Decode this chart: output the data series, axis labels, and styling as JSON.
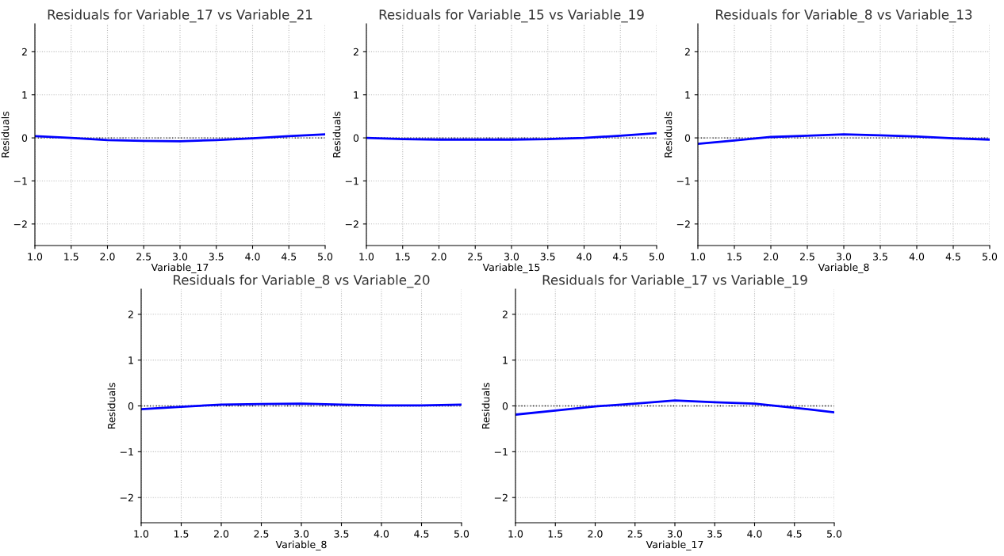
{
  "chart_data": [
    {
      "type": "line",
      "title": "Residuals for Variable_17 vs Variable_21",
      "xlabel": "Variable_17",
      "ylabel": "Residuals",
      "x": [
        1.0,
        1.5,
        2.0,
        2.5,
        3.0,
        3.5,
        4.0,
        4.5,
        5.0
      ],
      "series": [
        {
          "color": "#0000ff",
          "values": [
            0.04,
            0.0,
            -0.05,
            -0.07,
            -0.08,
            -0.05,
            -0.01,
            0.04,
            0.08
          ]
        }
      ],
      "xlim": [
        1.0,
        5.0
      ],
      "ylim": [
        -2.5,
        2.65
      ],
      "xticks": [
        {
          "value": 1.0,
          "label": "1.0"
        },
        {
          "value": 1.5,
          "label": "1.5"
        },
        {
          "value": 2.0,
          "label": "2.0"
        },
        {
          "value": 2.5,
          "label": "2.5"
        },
        {
          "value": 3.0,
          "label": "3.0"
        },
        {
          "value": 3.5,
          "label": "3.5"
        },
        {
          "value": 4.0,
          "label": "4.0"
        },
        {
          "value": 4.5,
          "label": "4.5"
        },
        {
          "value": 5.0,
          "label": "5.0"
        }
      ],
      "yticks": [
        -2,
        -1,
        0,
        1,
        2
      ],
      "ref_lines": [
        {
          "axis": "y",
          "value": 0,
          "color": "#000000",
          "line_style": "dotted"
        }
      ],
      "grid": true,
      "marker": "none",
      "line_style": "solid"
    },
    {
      "type": "line",
      "title": "Residuals for Variable_15 vs Variable_19",
      "xlabel": "Variable_15",
      "ylabel": "Residuals",
      "x": [
        1.0,
        1.5,
        2.0,
        2.5,
        3.0,
        3.5,
        4.0,
        4.5,
        5.0
      ],
      "series": [
        {
          "color": "#0000ff",
          "values": [
            0.0,
            -0.03,
            -0.04,
            -0.04,
            -0.04,
            -0.03,
            0.0,
            0.05,
            0.11
          ]
        }
      ],
      "xlim": [
        1.0,
        5.0
      ],
      "ylim": [
        -2.5,
        2.65
      ],
      "xticks": [
        {
          "value": 1.0,
          "label": "1.0"
        },
        {
          "value": 1.5,
          "label": "1.5"
        },
        {
          "value": 2.0,
          "label": "2.0"
        },
        {
          "value": 2.5,
          "label": "2.5"
        },
        {
          "value": 3.0,
          "label": "3.0"
        },
        {
          "value": 3.5,
          "label": "3.5"
        },
        {
          "value": 4.0,
          "label": "4.0"
        },
        {
          "value": 4.5,
          "label": "4.5"
        },
        {
          "value": 5.0,
          "label": "5.0"
        }
      ],
      "yticks": [
        -2,
        -1,
        0,
        1,
        2
      ],
      "ref_lines": [
        {
          "axis": "y",
          "value": 0,
          "color": "#000000",
          "line_style": "dotted"
        }
      ],
      "grid": true,
      "marker": "none",
      "line_style": "solid"
    },
    {
      "type": "line",
      "title": "Residuals for Variable_8 vs Variable_13",
      "xlabel": "Variable_8",
      "ylabel": "Residuals",
      "x": [
        1.0,
        1.5,
        2.0,
        2.5,
        3.0,
        3.5,
        4.0,
        4.5,
        5.0
      ],
      "series": [
        {
          "color": "#0000ff",
          "values": [
            -0.14,
            -0.06,
            0.02,
            0.05,
            0.08,
            0.06,
            0.03,
            -0.01,
            -0.04
          ]
        }
      ],
      "xlim": [
        1.0,
        5.0
      ],
      "ylim": [
        -2.5,
        2.65
      ],
      "xticks": [
        {
          "value": 1.0,
          "label": "1.0"
        },
        {
          "value": 1.5,
          "label": "1.5"
        },
        {
          "value": 2.0,
          "label": "2.0"
        },
        {
          "value": 2.5,
          "label": "2.5"
        },
        {
          "value": 3.0,
          "label": "3.0"
        },
        {
          "value": 3.5,
          "label": "3.5"
        },
        {
          "value": 4.0,
          "label": "4.0"
        },
        {
          "value": 4.5,
          "label": "4.5"
        },
        {
          "value": 5.0,
          "label": "5.0"
        }
      ],
      "yticks": [
        -2,
        -1,
        0,
        1,
        2
      ],
      "ref_lines": [
        {
          "axis": "y",
          "value": 0,
          "color": "#000000",
          "line_style": "dotted"
        }
      ],
      "grid": true,
      "marker": "none",
      "line_style": "solid"
    },
    {
      "type": "line",
      "title": "Residuals for Variable_8 vs Variable_20",
      "xlabel": "Variable_8",
      "ylabel": "Residuals",
      "x": [
        1.0,
        1.5,
        2.0,
        2.5,
        3.0,
        3.5,
        4.0,
        4.5,
        5.0
      ],
      "series": [
        {
          "color": "#0000ff",
          "values": [
            -0.07,
            -0.02,
            0.03,
            0.04,
            0.05,
            0.03,
            0.01,
            0.01,
            0.03
          ]
        }
      ],
      "xlim": [
        1.0,
        5.0
      ],
      "ylim": [
        -2.55,
        2.55
      ],
      "xticks": [
        {
          "value": 1.0,
          "label": "1.0"
        },
        {
          "value": 1.5,
          "label": "1.5"
        },
        {
          "value": 2.0,
          "label": "2.0"
        },
        {
          "value": 2.5,
          "label": "2.5"
        },
        {
          "value": 3.0,
          "label": "3.0"
        },
        {
          "value": 3.5,
          "label": "3.5"
        },
        {
          "value": 4.0,
          "label": "4.0"
        },
        {
          "value": 4.5,
          "label": "4.5"
        },
        {
          "value": 5.0,
          "label": "5.0"
        }
      ],
      "yticks": [
        -2,
        -1,
        0,
        1,
        2
      ],
      "ref_lines": [
        {
          "axis": "y",
          "value": 0,
          "color": "#000000",
          "line_style": "dotted"
        }
      ],
      "grid": true,
      "marker": "none",
      "line_style": "solid"
    },
    {
      "type": "line",
      "title": "Residuals for Variable_17 vs Variable_19",
      "xlabel": "Variable_17",
      "ylabel": "Residuals",
      "x": [
        1.0,
        1.5,
        2.0,
        2.5,
        3.0,
        3.5,
        4.0,
        4.5,
        5.0
      ],
      "series": [
        {
          "color": "#0000ff",
          "values": [
            -0.19,
            -0.1,
            -0.01,
            0.05,
            0.12,
            0.08,
            0.05,
            -0.04,
            -0.14
          ]
        }
      ],
      "xlim": [
        1.0,
        5.0
      ],
      "ylim": [
        -2.55,
        2.55
      ],
      "xticks": [
        {
          "value": 1.0,
          "label": "1.0"
        },
        {
          "value": 1.5,
          "label": "1.5"
        },
        {
          "value": 2.0,
          "label": "2.0"
        },
        {
          "value": 2.5,
          "label": "2.5"
        },
        {
          "value": 3.0,
          "label": "3.0"
        },
        {
          "value": 3.5,
          "label": "3.5"
        },
        {
          "value": 4.0,
          "label": "4.0"
        },
        {
          "value": 4.5,
          "label": "4.5"
        },
        {
          "value": 5.0,
          "label": "5.0"
        }
      ],
      "yticks": [
        -2,
        -1,
        0,
        1,
        2
      ],
      "ref_lines": [
        {
          "axis": "y",
          "value": 0,
          "color": "#000000",
          "line_style": "dotted"
        }
      ],
      "grid": true,
      "marker": "none",
      "line_style": "solid"
    }
  ]
}
